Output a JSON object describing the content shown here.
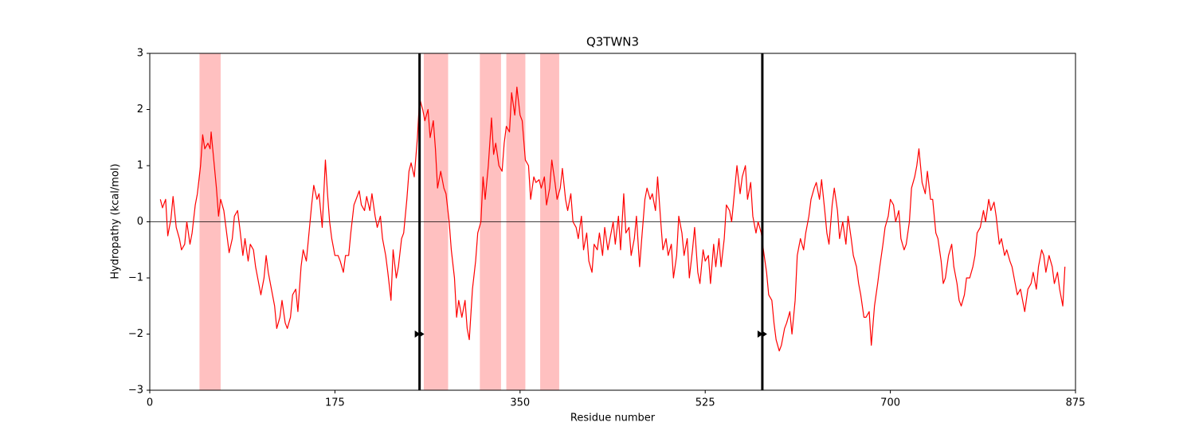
{
  "chart_data": {
    "type": "line",
    "title": "Q3TWN3",
    "xlabel": "Residue number",
    "ylabel": "Hydropathy (kcal/mol)",
    "color": "#ff0000",
    "span_color": "#ffc0c0",
    "vline_color": "#000000",
    "xlim": [
      0,
      875
    ],
    "ylim": [
      -3,
      3
    ],
    "xticks": [
      0,
      175,
      350,
      525,
      700,
      875
    ],
    "yticks": [
      {
        "value": -3,
        "label": "−3"
      },
      {
        "value": -2,
        "label": "−2"
      },
      {
        "value": -1,
        "label": "−1"
      },
      0,
      1,
      2,
      3
    ],
    "hline": 0,
    "spans": [
      [
        47,
        67
      ],
      [
        259,
        282
      ],
      [
        312,
        332
      ],
      [
        337,
        355
      ],
      [
        369,
        387
      ]
    ],
    "vlines": [
      255,
      579
    ],
    "markers": [
      {
        "x": 255,
        "y": -2
      },
      {
        "x": 579,
        "y": -2
      }
    ],
    "x": [
      10,
      12,
      15,
      17,
      20,
      22,
      25,
      28,
      30,
      33,
      35,
      38,
      40,
      43,
      45,
      48,
      50,
      52,
      55,
      57,
      58,
      60,
      63,
      65,
      67,
      70,
      72,
      75,
      78,
      80,
      83,
      85,
      88,
      90,
      93,
      95,
      98,
      100,
      103,
      105,
      108,
      110,
      112,
      115,
      118,
      120,
      123,
      125,
      128,
      130,
      133,
      135,
      138,
      140,
      143,
      145,
      148,
      150,
      153,
      155,
      158,
      160,
      163,
      165,
      166,
      168,
      170,
      172,
      175,
      178,
      180,
      183,
      185,
      188,
      190,
      193,
      195,
      198,
      200,
      203,
      205,
      208,
      210,
      213,
      215,
      218,
      220,
      223,
      225,
      228,
      230,
      233,
      235,
      238,
      240,
      243,
      245,
      247,
      250,
      253,
      255,
      258,
      260,
      263,
      265,
      268,
      270,
      272,
      275,
      278,
      280,
      283,
      285,
      288,
      290,
      292,
      295,
      298,
      300,
      302,
      305,
      308,
      310,
      313,
      315,
      317,
      320,
      323,
      325,
      327,
      330,
      333,
      335,
      337,
      340,
      342,
      345,
      347,
      350,
      352,
      355,
      358,
      360,
      363,
      365,
      368,
      370,
      373,
      375,
      378,
      380,
      383,
      385,
      388,
      390,
      393,
      395,
      398,
      400,
      403,
      405,
      408,
      410,
      413,
      415,
      418,
      420,
      423,
      425,
      428,
      430,
      433,
      435,
      438,
      440,
      443,
      445,
      448,
      450,
      453,
      455,
      458,
      460,
      463,
      465,
      468,
      470,
      473,
      475,
      478,
      480,
      483,
      485,
      488,
      490,
      493,
      495,
      498,
      500,
      503,
      505,
      508,
      510,
      513,
      515,
      518,
      520,
      523,
      525,
      528,
      530,
      533,
      535,
      538,
      540,
      543,
      545,
      548,
      550,
      553,
      555,
      558,
      560,
      563,
      565,
      568,
      570,
      573,
      575,
      578,
      580,
      583,
      585,
      588,
      590,
      592,
      595,
      597,
      600,
      602,
      605,
      607,
      610,
      612,
      615,
      618,
      620,
      623,
      625,
      628,
      630,
      633,
      635,
      638,
      640,
      642,
      645,
      647,
      650,
      652,
      655,
      658,
      660,
      663,
      665,
      668,
      670,
      672,
      675,
      677,
      680,
      682,
      685,
      688,
      690,
      693,
      695,
      698,
      700,
      703,
      705,
      708,
      710,
      713,
      715,
      718,
      720,
      723,
      725,
      727,
      730,
      733,
      735,
      738,
      740,
      743,
      745,
      748,
      750,
      752,
      755,
      758,
      760,
      763,
      765,
      767,
      770,
      772,
      775,
      778,
      780,
      782,
      785,
      788,
      790,
      793,
      795,
      798,
      800,
      803,
      805,
      808,
      810,
      813,
      815,
      818,
      820,
      823,
      825,
      827,
      830,
      833,
      835,
      838,
      840,
      843,
      845,
      847,
      850,
      853,
      855,
      858,
      860,
      863,
      865
    ],
    "values": [
      0.4,
      0.25,
      0.4,
      -0.25,
      0.05,
      0.45,
      -0.1,
      -0.3,
      -0.5,
      -0.4,
      0,
      -0.4,
      -0.2,
      0.3,
      0.5,
      1.0,
      1.55,
      1.3,
      1.4,
      1.3,
      1.6,
      1.2,
      0.6,
      0.1,
      0.4,
      0.2,
      -0.1,
      -0.55,
      -0.3,
      0.1,
      0.2,
      -0.1,
      -0.6,
      -0.3,
      -0.7,
      -0.4,
      -0.5,
      -0.8,
      -1.1,
      -1.3,
      -1.0,
      -0.6,
      -0.9,
      -1.2,
      -1.5,
      -1.9,
      -1.7,
      -1.4,
      -1.8,
      -1.9,
      -1.7,
      -1.3,
      -1.2,
      -1.6,
      -0.8,
      -0.5,
      -0.7,
      -0.3,
      0.3,
      0.65,
      0.4,
      0.5,
      -0.1,
      0.7,
      1.1,
      0.5,
      0,
      -0.3,
      -0.6,
      -0.6,
      -0.7,
      -0.9,
      -0.6,
      -0.6,
      -0.2,
      0.3,
      0.4,
      0.55,
      0.3,
      0.2,
      0.45,
      0.2,
      0.5,
      0.1,
      -0.1,
      0.1,
      -0.3,
      -0.6,
      -0.9,
      -1.4,
      -0.5,
      -1.0,
      -0.8,
      -0.3,
      -0.2,
      0.4,
      0.9,
      1.05,
      0.8,
      1.5,
      2.2,
      2.0,
      1.8,
      2.0,
      1.5,
      1.8,
      1.3,
      0.6,
      0.9,
      0.6,
      0.5,
      0.0,
      -0.5,
      -1.0,
      -1.7,
      -1.4,
      -1.7,
      -1.4,
      -1.9,
      -2.1,
      -1.2,
      -0.7,
      -0.2,
      0.0,
      0.8,
      0.4,
      1.0,
      1.85,
      1.2,
      1.4,
      1.0,
      0.9,
      1.4,
      1.7,
      1.6,
      2.3,
      1.9,
      2.4,
      1.9,
      1.8,
      1.1,
      1.0,
      0.4,
      0.8,
      0.7,
      0.75,
      0.6,
      0.8,
      0.3,
      0.6,
      1.1,
      0.7,
      0.4,
      0.6,
      0.95,
      0.4,
      0.2,
      0.5,
      0.0,
      -0.1,
      -0.3,
      0.1,
      -0.5,
      -0.2,
      -0.7,
      -0.9,
      -0.4,
      -0.5,
      -0.2,
      -0.6,
      -0.1,
      -0.5,
      -0.3,
      0.0,
      -0.4,
      0.1,
      -0.5,
      0.5,
      -0.2,
      -0.1,
      -0.6,
      -0.3,
      0.1,
      -0.8,
      -0.3,
      0.4,
      0.6,
      0.4,
      0.5,
      0.2,
      0.8,
      0.0,
      -0.5,
      -0.3,
      -0.6,
      -0.4,
      -1.0,
      -0.6,
      0.1,
      -0.2,
      -0.6,
      -0.3,
      -1.0,
      -0.5,
      -0.1,
      -0.9,
      -1.1,
      -0.5,
      -0.7,
      -0.6,
      -1.1,
      -0.4,
      -0.8,
      -0.3,
      -0.8,
      -0.3,
      0.3,
      0.2,
      0.0,
      0.6,
      1.0,
      0.5,
      0.8,
      1.0,
      0.4,
      0.7,
      0.1,
      -0.2,
      0.0,
      -0.2,
      -0.5,
      -0.9,
      -1.3,
      -1.4,
      -1.8,
      -2.1,
      -2.3,
      -2.2,
      -1.9,
      -1.8,
      -1.6,
      -2.0,
      -1.4,
      -0.6,
      -0.3,
      -0.5,
      -0.2,
      0.1,
      0.4,
      0.6,
      0.7,
      0.4,
      0.75,
      0.2,
      -0.2,
      -0.4,
      0.3,
      0.6,
      0.2,
      -0.3,
      0.0,
      -0.4,
      0.1,
      -0.3,
      -0.6,
      -0.8,
      -1.1,
      -1.3,
      -1.7,
      -1.7,
      -1.6,
      -2.2,
      -1.5,
      -1.1,
      -0.8,
      -0.4,
      -0.1,
      0.1,
      0.4,
      0.3,
      0.0,
      0.2,
      -0.3,
      -0.5,
      -0.4,
      0.0,
      0.6,
      0.8,
      1.0,
      1.3,
      0.7,
      0.5,
      0.9,
      0.4,
      0.4,
      -0.2,
      -0.3,
      -0.7,
      -1.1,
      -1.0,
      -0.6,
      -0.4,
      -0.8,
      -1.1,
      -1.4,
      -1.5,
      -1.3,
      -1.0,
      -1.0,
      -0.8,
      -0.6,
      -0.2,
      -0.1,
      0.2,
      0.0,
      0.4,
      0.2,
      0.35,
      0.1,
      -0.4,
      -0.3,
      -0.6,
      -0.5,
      -0.7,
      -0.8,
      -1.1,
      -1.3,
      -1.2,
      -1.4,
      -1.6,
      -1.2,
      -1.1,
      -0.9,
      -1.2,
      -0.8,
      -0.5,
      -0.6,
      -0.9,
      -0.6,
      -0.8,
      -1.1,
      -0.9,
      -1.2,
      -1.5,
      -0.8
    ]
  }
}
